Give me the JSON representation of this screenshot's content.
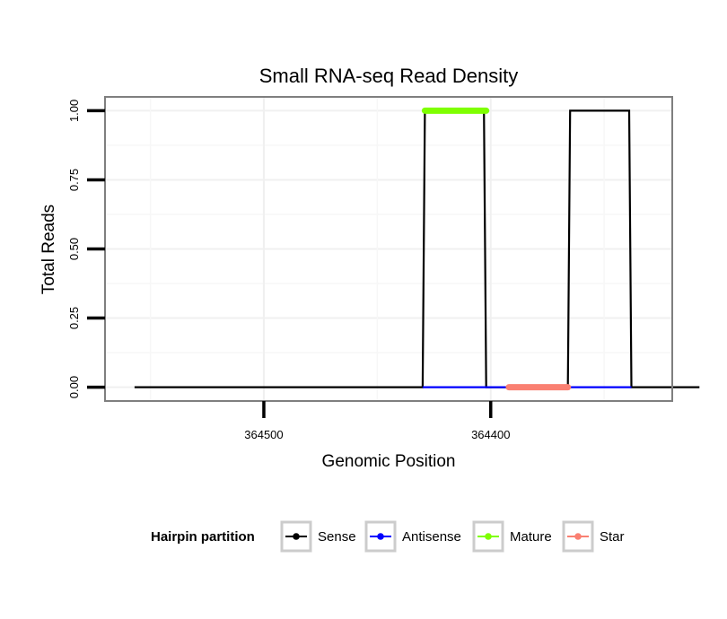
{
  "chart_data": {
    "type": "line",
    "title": "Small RNA-seq Read Density",
    "xlabel": "Genomic Position",
    "ylabel": "Total Reads",
    "x_reversed": true,
    "xlim": [
      364570,
      364320
    ],
    "ylim": [
      -0.05,
      1.05
    ],
    "x_ticks": [
      364500,
      364400
    ],
    "x_tick_labels": [
      "364500",
      "364400"
    ],
    "y_ticks": [
      0,
      0.25,
      0.5,
      0.75,
      1.0
    ],
    "y_tick_labels": [
      "0.00",
      "0.25",
      "0.50",
      "0.75",
      "1.00"
    ],
    "series": [
      {
        "name": "Sense",
        "color": "#000000",
        "x": [
          364557,
          364430,
          364429,
          364403,
          364402,
          364366,
          364365,
          364339,
          364338,
          364308
        ],
        "y": [
          0,
          0,
          1,
          1,
          0,
          0,
          1,
          1,
          0,
          0
        ]
      },
      {
        "name": "Antisense",
        "color": "#0000ff",
        "x": [
          364430,
          364338
        ],
        "y": [
          0,
          0
        ]
      },
      {
        "name": "Mature",
        "color": "#7fff00",
        "x": [
          364429,
          364402
        ],
        "y": [
          1,
          1
        ]
      },
      {
        "name": "Star",
        "color": "#fa8072",
        "x": [
          364392,
          364366
        ],
        "y": [
          0,
          0
        ]
      }
    ],
    "legend": {
      "title": "Hairpin partition",
      "position": "bottom",
      "entries": [
        "Sense",
        "Antisense",
        "Mature",
        "Star"
      ]
    }
  }
}
